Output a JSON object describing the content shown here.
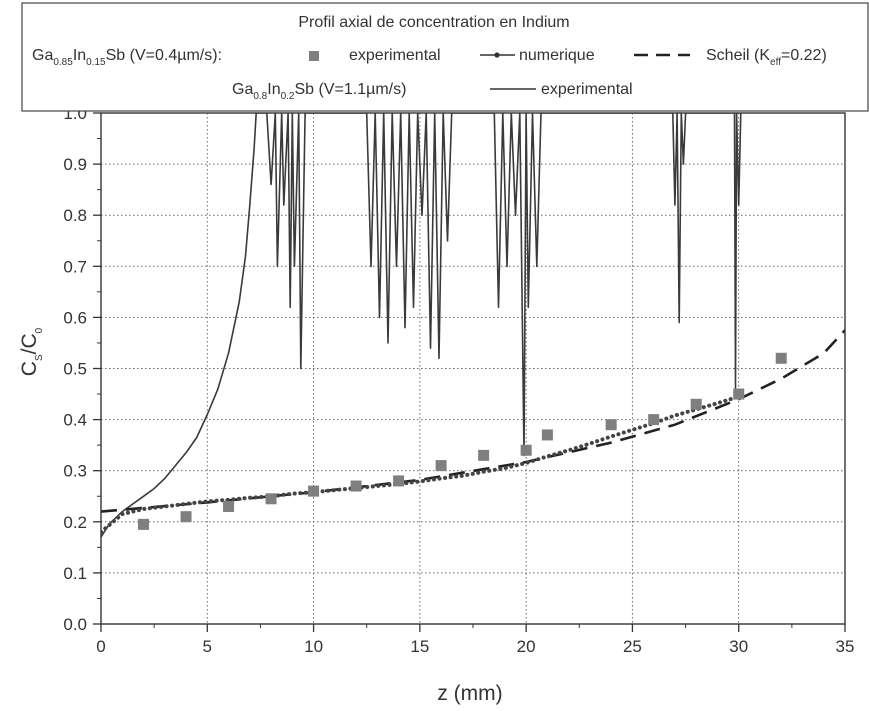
{
  "chart_data": {
    "type": "scatter",
    "title": "Profil axial de concentration en Indium",
    "xlabel": "z (mm)",
    "ylabel": "C_S/C_0",
    "xlim": [
      0,
      35
    ],
    "ylim": [
      0,
      1.0
    ],
    "x_ticks": [
      "0",
      "5",
      "10",
      "15",
      "20",
      "25",
      "30",
      "35"
    ],
    "y_ticks": [
      "0.0",
      "0.1",
      "0.2",
      "0.3",
      "0.4",
      "0.5",
      "0.6",
      "0.7",
      "0.8",
      "0.9",
      "1.0"
    ],
    "grid": true,
    "legend_position": "top",
    "legend": {
      "row1_prefix": "Ga",
      "row1_sub1": "0.85",
      "row1_mid": "In",
      "row1_sub2": "0.15",
      "row1_suffix": "Sb  (V=0.4µm/s):",
      "item_experimental": "experimental",
      "item_numerique": "numerique",
      "item_scheil_prefix": "Scheil (K",
      "item_scheil_sub": "eff",
      "item_scheil_suffix": "=0.22)",
      "row2_prefix": "Ga",
      "row2_sub1": "0.8",
      "row2_mid": "In",
      "row2_sub2": "0.2",
      "row2_suffix": "Sb  (V=1.1µm/s)",
      "item_experimental_2": "experimental"
    },
    "series": [
      {
        "name": "experimental",
        "kind": "markers",
        "color": "#7f7f7f",
        "x": [
          2,
          4,
          6,
          8,
          10,
          12,
          14,
          16,
          18,
          20,
          21,
          24,
          26,
          28,
          30,
          32
        ],
        "y": [
          0.195,
          0.21,
          0.23,
          0.245,
          0.26,
          0.27,
          0.28,
          0.31,
          0.33,
          0.34,
          0.37,
          0.39,
          0.4,
          0.43,
          0.45,
          0.52
        ]
      },
      {
        "name": "numerique",
        "kind": "dotted-line",
        "color": "#444444",
        "x": [
          0,
          1,
          2,
          3,
          4,
          5,
          6,
          7,
          8,
          9,
          10,
          11,
          12,
          13,
          14,
          15,
          16,
          17,
          18,
          19,
          20,
          21,
          22,
          23,
          24,
          25,
          26,
          27,
          28,
          29,
          30
        ],
        "y": [
          0.18,
          0.215,
          0.225,
          0.23,
          0.235,
          0.24,
          0.243,
          0.247,
          0.25,
          0.255,
          0.258,
          0.262,
          0.266,
          0.27,
          0.274,
          0.279,
          0.285,
          0.29,
          0.298,
          0.305,
          0.315,
          0.328,
          0.34,
          0.353,
          0.367,
          0.38,
          0.393,
          0.408,
          0.42,
          0.432,
          0.445
        ]
      },
      {
        "name": "Scheil (Keff=0.22)",
        "kind": "dashed-line",
        "color": "#222222",
        "x": [
          0,
          5,
          10,
          15,
          20,
          24,
          27,
          30,
          32,
          34,
          35
        ],
        "y": [
          0.22,
          0.238,
          0.258,
          0.282,
          0.317,
          0.355,
          0.39,
          0.44,
          0.48,
          0.53,
          0.575
        ]
      },
      {
        "name": "experimental (Ga0.8In0.2Sb)",
        "kind": "solid-line",
        "color": "#3a3a3a",
        "x": [
          0,
          0.3,
          0.5,
          1,
          1.5,
          2,
          2.5,
          3,
          3.5,
          4,
          4.5,
          5,
          5.5,
          6,
          6.5,
          6.8,
          7.0,
          7.2,
          7.3,
          7.5,
          7.8,
          8.0,
          8.2,
          8.3,
          8.5,
          8.6,
          8.8,
          8.9,
          9.0,
          9.1,
          9.3,
          9.4,
          9.6,
          12.5,
          12.7,
          12.9,
          13.1,
          13.3,
          13.5,
          13.7,
          13.9,
          14.1,
          14.3,
          14.5,
          14.7,
          14.9,
          15.1,
          15.3,
          15.5,
          15.7,
          15.9,
          16.1,
          16.3,
          16.5,
          18.5,
          18.7,
          18.9,
          19.1,
          19.3,
          19.5,
          19.7,
          19.9,
          20.0,
          20.1,
          20.3,
          20.5,
          20.7,
          20.9,
          26.9,
          27.0,
          27.1,
          27.2,
          27.3,
          27.4,
          27.5,
          29.8,
          29.85,
          29.9,
          30.0,
          30.1
        ],
        "y": [
          0.17,
          0.19,
          0.2,
          0.22,
          0.235,
          0.25,
          0.265,
          0.285,
          0.31,
          0.335,
          0.365,
          0.41,
          0.46,
          0.53,
          0.63,
          0.72,
          0.82,
          0.93,
          1.0,
          1.0,
          1.0,
          0.86,
          1.0,
          0.7,
          1.0,
          0.82,
          1.0,
          0.62,
          1.0,
          0.7,
          1.0,
          0.5,
          1.0,
          1.0,
          0.7,
          1.0,
          0.6,
          1.0,
          0.55,
          1.0,
          0.7,
          1.0,
          0.58,
          1.0,
          0.62,
          1.0,
          0.8,
          1.0,
          0.54,
          1.0,
          0.52,
          1.0,
          0.75,
          1.0,
          1.0,
          0.62,
          1.0,
          0.7,
          1.0,
          0.8,
          1.0,
          0.33,
          1.0,
          0.62,
          1.0,
          0.7,
          1.0,
          1.0,
          1.0,
          0.82,
          1.0,
          0.59,
          1.0,
          0.9,
          1.0,
          1.0,
          0.46,
          1.0,
          0.82,
          1.0
        ]
      }
    ]
  },
  "colors": {
    "grid": "#555555",
    "axis": "#333333",
    "marker": "#7f7f7f",
    "line": "#3a3a3a"
  }
}
